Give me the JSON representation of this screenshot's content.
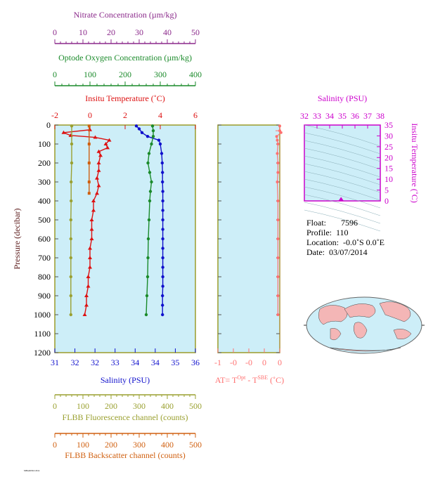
{
  "colors": {
    "nitrate": "#8b2a8b",
    "oxygen": "#1a8a2a",
    "temperature": "#dd1111",
    "salinity": "#1010cc",
    "fluorescence": "#9aa030",
    "backscatter": "#d06010",
    "delta_t": "#ff7070",
    "ts_axis": "#cc00cc",
    "plot_bg": "#cdeef8",
    "frame": "#9b9b2a"
  },
  "axes": {
    "nitrate": {
      "title": "Nitrate Concentration (µm/kg)",
      "ticks": [
        "0",
        "10",
        "20",
        "30",
        "40",
        "50"
      ]
    },
    "oxygen": {
      "title": "Optode Oxygen Concentration (µm/kg)",
      "ticks": [
        "0",
        "100",
        "200",
        "300",
        "400"
      ]
    },
    "temperature": {
      "title": "Insitu Temperature (˚C)",
      "ticks": [
        "-2",
        "0",
        "2",
        "4",
        "6"
      ]
    },
    "pressure": {
      "title": "Pressure (decibar)",
      "ticks": [
        "0",
        "100",
        "200",
        "300",
        "400",
        "500",
        "600",
        "700",
        "800",
        "900",
        "1000",
        "1100",
        "1200"
      ]
    },
    "salinity": {
      "title": "Salinity (PSU)",
      "ticks": [
        "31",
        "32",
        "32",
        "33",
        "34",
        "34",
        "35",
        "36"
      ]
    },
    "fluorescence": {
      "title": "FLBB Fluorescence channel (counts)",
      "ticks": [
        "0",
        "100",
        "200",
        "300",
        "400",
        "500"
      ]
    },
    "backscatter": {
      "title": "FLBB Backscatter channel (counts)",
      "ticks": [
        "0",
        "100",
        "200",
        "300",
        "400",
        "500"
      ]
    },
    "delta_t": {
      "title_main": "AT= T",
      "sup1": "Opt",
      "title_mid": " - T",
      "sup2": "SBE",
      "title_end": " (˚C)",
      "ticks": [
        "-1",
        "-0",
        "-0",
        "0",
        "0"
      ]
    },
    "ts_salinity": {
      "title": "Salinity (PSU)",
      "ticks": [
        "32",
        "33",
        "34",
        "35",
        "36",
        "37",
        "38"
      ]
    },
    "ts_temperature": {
      "title": "Insitu Temperature (˚C)",
      "ticks": [
        "35",
        "30",
        "25",
        "20",
        "15",
        "10",
        "5",
        "0"
      ]
    }
  },
  "info": {
    "float_label": "Float:",
    "float_value": "7596",
    "profile_label": "Profile:",
    "profile_value": "110",
    "location_label": "Location:",
    "location_value": "-0.0˚S   0.0˚E",
    "date_label": "Date:",
    "date_value": "03/07/2014"
  },
  "footer_text": "MBARI/SIO 2014",
  "chart_data": [
    {
      "type": "line",
      "title": "",
      "ylabel": "Pressure (decibar)",
      "ylim": [
        0,
        1200
      ],
      "y_inverted": true,
      "series": [
        {
          "name": "Insitu Temperature (˚C)",
          "xlim": [
            -2,
            6
          ],
          "points": [
            [
              0.0,
              25
            ],
            [
              -1.5,
              40
            ],
            [
              -1.1,
              55
            ],
            [
              0.3,
              65
            ],
            [
              1.1,
              80
            ],
            [
              0.9,
              100
            ],
            [
              1.0,
              120
            ],
            [
              0.5,
              140
            ],
            [
              0.6,
              160
            ],
            [
              0.5,
              200
            ],
            [
              0.5,
              240
            ],
            [
              0.4,
              280
            ],
            [
              0.5,
              320
            ],
            [
              0.4,
              360
            ],
            [
              0.2,
              400
            ],
            [
              0.2,
              450
            ],
            [
              0.1,
              500
            ],
            [
              0.1,
              550
            ],
            [
              0.1,
              600
            ],
            [
              0.0,
              650
            ],
            [
              0.0,
              700
            ],
            [
              0.0,
              750
            ],
            [
              -0.1,
              800
            ],
            [
              -0.1,
              850
            ],
            [
              -0.2,
              900
            ],
            [
              -0.2,
              950
            ],
            [
              -0.3,
              1000
            ]
          ]
        },
        {
          "name": "Salinity (PSU)",
          "xlim": [
            31,
            36
          ],
          "points": [
            [
              33.9,
              5
            ],
            [
              34.0,
              20
            ],
            [
              34.1,
              40
            ],
            [
              34.3,
              60
            ],
            [
              34.7,
              80
            ],
            [
              34.75,
              100
            ],
            [
              34.8,
              150
            ],
            [
              34.82,
              200
            ],
            [
              34.83,
              250
            ],
            [
              34.83,
              300
            ],
            [
              34.84,
              350
            ],
            [
              34.84,
              400
            ],
            [
              34.84,
              450
            ],
            [
              34.84,
              500
            ],
            [
              34.84,
              550
            ],
            [
              34.84,
              600
            ],
            [
              34.84,
              650
            ],
            [
              34.84,
              700
            ],
            [
              34.84,
              750
            ],
            [
              34.84,
              800
            ],
            [
              34.84,
              850
            ],
            [
              34.83,
              900
            ],
            [
              34.83,
              950
            ],
            [
              34.83,
              1000
            ]
          ]
        },
        {
          "name": "Optode Oxygen Concentration (µm/kg)",
          "xlim": [
            0,
            400
          ],
          "points": [
            [
              278,
              5
            ],
            [
              280,
              30
            ],
            [
              280,
              60
            ],
            [
              275,
              100
            ],
            [
              268,
              150
            ],
            [
              265,
              200
            ],
            [
              270,
              250
            ],
            [
              275,
              300
            ],
            [
              272,
              350
            ],
            [
              270,
              400
            ],
            [
              268,
              500
            ],
            [
              266,
              600
            ],
            [
              265,
              700
            ],
            [
              264,
              800
            ],
            [
              262,
              900
            ],
            [
              260,
              1000
            ]
          ]
        },
        {
          "name": "FLBB Fluorescence channel (counts)",
          "xlim": [
            0,
            500
          ],
          "points": [
            [
              60,
              5
            ],
            [
              60,
              100
            ],
            [
              60,
              200
            ],
            [
              58,
              300
            ],
            [
              58,
              400
            ],
            [
              57,
              500
            ],
            [
              57,
              600
            ],
            [
              57,
              700
            ],
            [
              57,
              800
            ],
            [
              57,
              900
            ],
            [
              57,
              1000
            ]
          ]
        },
        {
          "name": "FLBB Backscatter channel (counts)",
          "xlim": [
            0,
            500
          ],
          "points": [
            [
              122,
              5
            ],
            [
              122,
              100
            ],
            [
              122,
              200
            ],
            [
              122,
              300
            ],
            [
              122,
              360
            ]
          ]
        }
      ]
    },
    {
      "type": "line",
      "title": "",
      "xlabel": "AT= TOpt - TSBE (˚C)",
      "xlim": [
        -1,
        0
      ],
      "ylim": [
        0,
        1200
      ],
      "series": [
        {
          "name": "AT",
          "points": [
            [
              0.0,
              5
            ],
            [
              0.0,
              30
            ],
            [
              0.02,
              40
            ],
            [
              -0.05,
              60
            ],
            [
              -0.04,
              80
            ],
            [
              -0.03,
              100
            ],
            [
              -0.04,
              150
            ],
            [
              -0.03,
              200
            ],
            [
              -0.03,
              250
            ],
            [
              -0.04,
              300
            ],
            [
              -0.03,
              400
            ],
            [
              -0.03,
              500
            ],
            [
              -0.03,
              600
            ],
            [
              -0.03,
              700
            ],
            [
              -0.03,
              800
            ],
            [
              -0.03,
              900
            ],
            [
              -0.03,
              1000
            ]
          ]
        }
      ]
    },
    {
      "type": "scatter",
      "title": "",
      "xlabel": "Salinity (PSU)",
      "ylabel": "Insitu Temperature (˚C)",
      "xlim": [
        32,
        38
      ],
      "ylim": [
        0,
        35
      ],
      "points": [
        [
          34.9,
          0.2
        ]
      ]
    }
  ]
}
